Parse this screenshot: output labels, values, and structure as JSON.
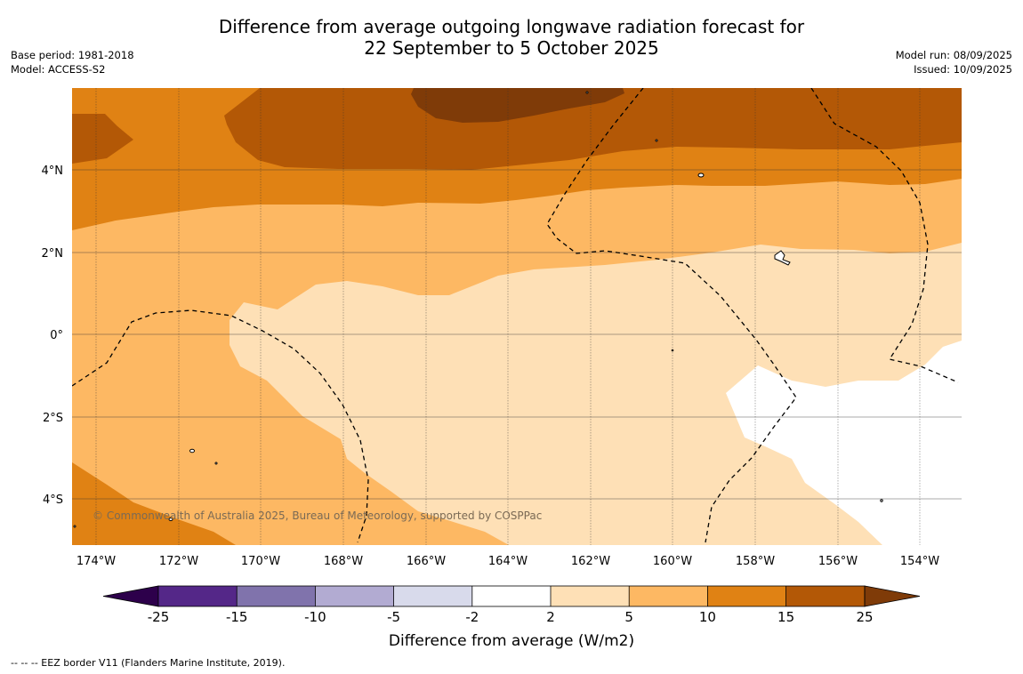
{
  "title_line1": "Difference from average outgoing longwave radiation forecast for",
  "title_line2": "22 September to 5 October 2025",
  "base_period": "Base period: 1981-2018",
  "model": "Model: ACCESS-S2",
  "model_run": "Model run: 08/09/2025",
  "issued": "Issued: 10/09/2025",
  "copyright": "© Commonwealth of Australia 2025, Bureau of Meteorology, supported by COSPPac",
  "footnote": "-- -- -- EEZ border V11 (Flanders Marine Institute, 2019).",
  "map": {
    "lon_range": [
      -174.6,
      -152.9
    ],
    "lat_range": [
      -5.2,
      5.8
    ],
    "lon_ticks": [
      -174,
      -172,
      -170,
      -168,
      -166,
      -164,
      -162,
      -160,
      -158,
      -156,
      -154
    ],
    "lon_tick_labels": [
      "174°W",
      "172°W",
      "170°W",
      "168°W",
      "166°W",
      "164°W",
      "162°W",
      "160°W",
      "158°W",
      "156°W",
      "154°W"
    ],
    "lat_ticks": [
      4,
      2,
      0,
      -2,
      -4
    ],
    "lat_tick_labels": [
      "4°N",
      "2°N",
      "0°",
      "2°S",
      "4°S"
    ]
  },
  "colorbar": {
    "label": "Difference from average (W/m2)",
    "tick_labels": [
      "-25",
      "-15",
      "-10",
      "-5",
      "-2",
      "2",
      "5",
      "10",
      "15",
      "25"
    ],
    "bins": [
      {
        "from": -25,
        "to": -15,
        "color": "#542788"
      },
      {
        "from": -15,
        "to": -10,
        "color": "#8073ac"
      },
      {
        "from": -10,
        "to": -5,
        "color": "#b2abd2"
      },
      {
        "from": -5,
        "to": -2,
        "color": "#d8daeb"
      },
      {
        "from": -2,
        "to": 2,
        "color": "#ffffff"
      },
      {
        "from": 2,
        "to": 5,
        "color": "#fee0b6"
      },
      {
        "from": 5,
        "to": 10,
        "color": "#fdb863"
      },
      {
        "from": 10,
        "to": 15,
        "color": "#e08214"
      },
      {
        "from": 15,
        "to": 25,
        "color": "#b35806"
      }
    ],
    "under_color": "#2d004b",
    "over_color": "#7f3b08"
  },
  "colors": {
    "level_2_5": "#fee0b6",
    "level_5_10": "#fdb863",
    "level_10_15": "#e08214",
    "level_15_25": "#b35806",
    "level_over_25": "#7f3b08",
    "level_neutral": "#ffffff"
  }
}
